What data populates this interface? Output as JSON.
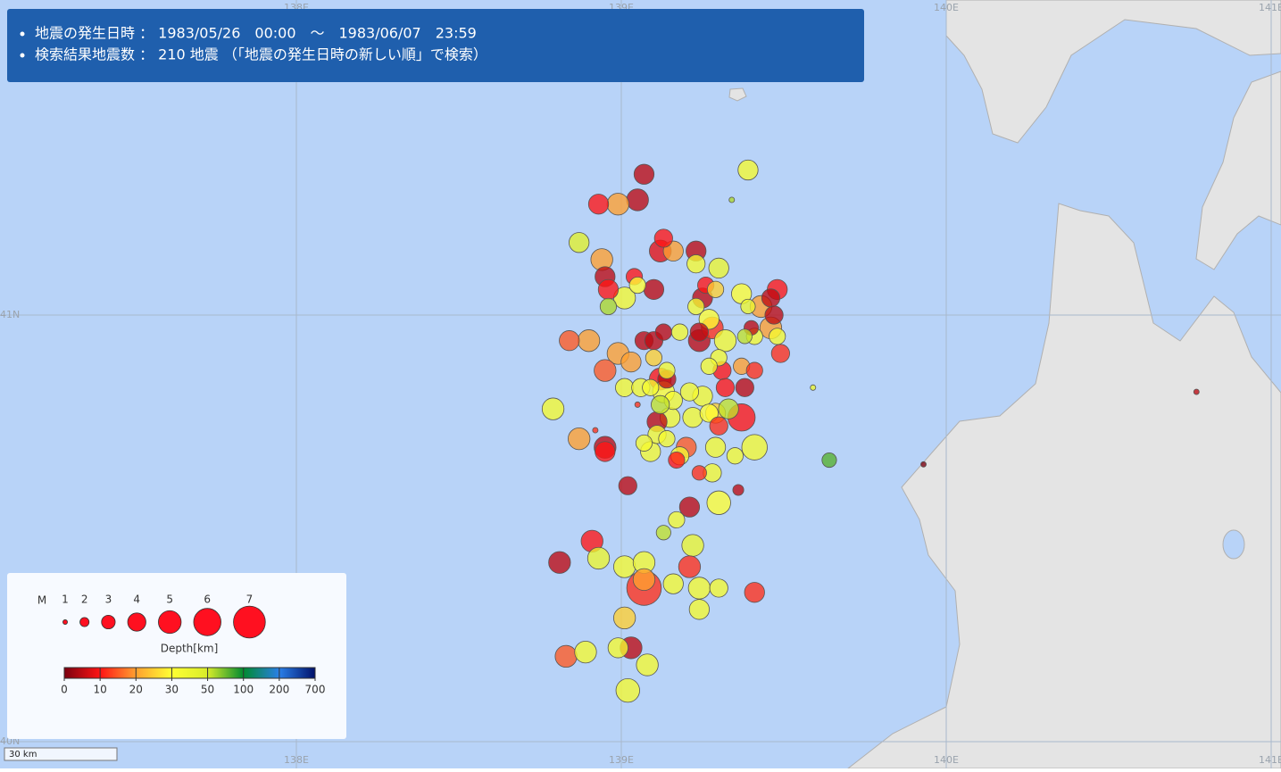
{
  "header": {
    "lines": [
      "地震の発生日時 ： 1983/05/26　00:00　～　1983/06/07　23:59",
      "検索結果地震数 ： 210 地震 （「地震の発生日時の新しい順」で検索）"
    ]
  },
  "map": {
    "lon_lines": [
      {
        "value": 138,
        "label": "138E"
      },
      {
        "value": 139,
        "label": "139E"
      },
      {
        "value": 140,
        "label": "140E"
      },
      {
        "value": 141,
        "label": "141E"
      }
    ],
    "lat_lines": [
      {
        "value": 41,
        "label": "41N"
      },
      {
        "value": 40,
        "label": "40N"
      }
    ],
    "scale_label": "30 km",
    "quakes": [
      [
        139.07,
        41.33,
        4.4,
        5
      ],
      [
        139.05,
        41.27,
        4.8,
        5
      ],
      [
        138.93,
        41.26,
        4.4,
        10
      ],
      [
        138.99,
        41.26,
        4.8,
        20
      ],
      [
        139.39,
        41.34,
        4.4,
        35
      ],
      [
        139.34,
        41.27,
        1.2,
        60
      ],
      [
        138.87,
        41.17,
        4.4,
        45
      ],
      [
        139.13,
        41.18,
        4.0,
        10
      ],
      [
        139.12,
        41.15,
        4.8,
        8
      ],
      [
        139.16,
        41.15,
        4.4,
        20
      ],
      [
        139.23,
        41.15,
        4.4,
        5
      ],
      [
        139.23,
        41.12,
        4.0,
        35
      ],
      [
        138.94,
        41.13,
        4.8,
        20
      ],
      [
        139.3,
        41.11,
        4.4,
        40
      ],
      [
        138.95,
        41.09,
        4.4,
        5
      ],
      [
        139.04,
        41.09,
        3.6,
        10
      ],
      [
        138.96,
        41.06,
        4.4,
        10
      ],
      [
        139.05,
        41.07,
        3.6,
        30
      ],
      [
        139.1,
        41.06,
        4.4,
        5
      ],
      [
        139.01,
        41.04,
        4.8,
        35
      ],
      [
        138.96,
        41.02,
        3.6,
        60
      ],
      [
        139.26,
        41.07,
        3.6,
        10
      ],
      [
        139.29,
        41.06,
        3.6,
        25
      ],
      [
        139.37,
        41.05,
        4.4,
        30
      ],
      [
        139.48,
        41.06,
        4.4,
        10
      ],
      [
        139.25,
        41.04,
        4.4,
        5
      ],
      [
        139.46,
        41.04,
        4.0,
        5
      ],
      [
        139.39,
        41.02,
        3.2,
        40
      ],
      [
        139.43,
        41.02,
        4.8,
        20
      ],
      [
        139.47,
        41.0,
        4.0,
        5
      ],
      [
        139.23,
        41.02,
        3.6,
        35
      ],
      [
        139.27,
        40.99,
        4.4,
        30
      ],
      [
        139.4,
        40.97,
        3.2,
        5
      ],
      [
        139.46,
        40.97,
        4.8,
        20
      ],
      [
        139.48,
        40.95,
        3.6,
        35
      ],
      [
        139.41,
        40.95,
        3.6,
        35
      ],
      [
        138.84,
        40.94,
        4.4,
        15
      ],
      [
        138.9,
        40.94,
        4.8,
        20
      ],
      [
        139.07,
        40.94,
        4.0,
        5
      ],
      [
        139.1,
        40.94,
        4.0,
        5
      ],
      [
        139.13,
        40.96,
        3.6,
        5
      ],
      [
        139.18,
        40.96,
        3.6,
        35
      ],
      [
        139.24,
        40.94,
        4.8,
        5
      ],
      [
        139.28,
        40.97,
        4.8,
        12
      ],
      [
        139.24,
        40.96,
        4.0,
        5
      ],
      [
        139.32,
        40.94,
        4.8,
        35
      ],
      [
        139.38,
        40.95,
        3.2,
        55
      ],
      [
        139.49,
        40.91,
        4.0,
        12
      ],
      [
        138.99,
        40.91,
        4.8,
        20
      ],
      [
        139.03,
        40.89,
        4.4,
        20
      ],
      [
        139.1,
        40.9,
        3.6,
        25
      ],
      [
        139.3,
        40.9,
        3.6,
        35
      ],
      [
        139.27,
        40.88,
        3.6,
        35
      ],
      [
        139.37,
        40.88,
        3.6,
        20
      ],
      [
        139.31,
        40.87,
        4.0,
        10
      ],
      [
        139.41,
        40.87,
        3.6,
        12
      ],
      [
        138.95,
        40.87,
        4.8,
        15
      ],
      [
        139.14,
        40.87,
        3.6,
        35
      ],
      [
        139.12,
        40.85,
        4.8,
        10
      ],
      [
        139.14,
        40.85,
        4.0,
        5
      ],
      [
        139.01,
        40.83,
        4.0,
        35
      ],
      [
        139.06,
        40.83,
        4.0,
        35
      ],
      [
        139.09,
        40.83,
        3.6,
        35
      ],
      [
        139.13,
        40.82,
        4.8,
        30
      ],
      [
        139.32,
        40.83,
        4.0,
        10
      ],
      [
        139.38,
        40.83,
        4.0,
        5
      ],
      [
        139.21,
        40.82,
        4.0,
        35
      ],
      [
        139.25,
        40.81,
        4.4,
        35
      ],
      [
        139.16,
        40.8,
        4.0,
        35
      ],
      [
        138.79,
        40.78,
        4.8,
        35
      ],
      [
        139.12,
        40.79,
        4.0,
        55
      ],
      [
        139.15,
        40.76,
        4.4,
        35
      ],
      [
        139.22,
        40.76,
        4.4,
        35
      ],
      [
        139.27,
        40.77,
        4.0,
        30
      ],
      [
        139.29,
        40.77,
        4.4,
        25
      ],
      [
        139.33,
        40.78,
        4.4,
        55
      ],
      [
        139.37,
        40.76,
        6.0,
        10
      ],
      [
        139.11,
        40.75,
        4.4,
        5
      ],
      [
        139.3,
        40.74,
        4.0,
        12
      ],
      [
        139.59,
        40.83,
        1.2,
        40
      ],
      [
        139.05,
        40.79,
        1.2,
        12
      ],
      [
        138.92,
        40.73,
        1.2,
        12
      ],
      [
        138.87,
        40.71,
        4.8,
        20
      ],
      [
        138.95,
        40.69,
        4.8,
        5
      ],
      [
        138.95,
        40.68,
        4.4,
        10
      ],
      [
        139.07,
        40.7,
        3.6,
        35
      ],
      [
        139.11,
        40.72,
        4.0,
        35
      ],
      [
        139.14,
        40.71,
        3.6,
        35
      ],
      [
        139.09,
        40.68,
        4.4,
        35
      ],
      [
        139.18,
        40.67,
        4.0,
        35
      ],
      [
        139.2,
        40.69,
        4.4,
        15
      ],
      [
        139.17,
        40.66,
        3.6,
        10
      ],
      [
        139.29,
        40.69,
        4.4,
        35
      ],
      [
        139.41,
        40.69,
        5.6,
        35
      ],
      [
        139.35,
        40.67,
        3.6,
        35
      ],
      [
        139.64,
        40.66,
        3.2,
        80
      ],
      [
        139.02,
        40.6,
        4.0,
        5
      ],
      [
        139.24,
        40.63,
        3.2,
        12
      ],
      [
        139.28,
        40.63,
        4.0,
        35
      ],
      [
        139.36,
        40.59,
        2.4,
        5
      ],
      [
        139.21,
        40.55,
        4.4,
        5
      ],
      [
        139.3,
        40.56,
        5.2,
        30
      ],
      [
        139.17,
        40.52,
        3.6,
        35
      ],
      [
        139.13,
        40.49,
        3.2,
        55
      ],
      [
        139.22,
        40.46,
        4.8,
        40
      ],
      [
        138.91,
        40.47,
        4.8,
        10
      ],
      [
        138.93,
        40.43,
        4.8,
        40
      ],
      [
        138.81,
        40.42,
        4.8,
        5
      ],
      [
        139.01,
        40.41,
        4.8,
        35
      ],
      [
        139.07,
        40.42,
        4.8,
        35
      ],
      [
        139.07,
        40.38,
        4.8,
        20
      ],
      [
        139.07,
        40.36,
        7.6,
        12
      ],
      [
        139.21,
        40.41,
        4.8,
        12
      ],
      [
        139.16,
        40.37,
        4.4,
        35
      ],
      [
        139.24,
        40.36,
        4.8,
        35
      ],
      [
        139.3,
        40.36,
        4.0,
        35
      ],
      [
        139.41,
        40.35,
        4.4,
        12
      ],
      [
        139.24,
        40.31,
        4.4,
        35
      ],
      [
        139.01,
        40.29,
        4.8,
        25
      ],
      [
        138.83,
        40.2,
        4.8,
        15
      ],
      [
        138.89,
        40.21,
        4.8,
        35
      ],
      [
        138.99,
        40.22,
        4.4,
        35
      ],
      [
        139.03,
        40.22,
        4.8,
        5
      ],
      [
        139.08,
        40.18,
        4.8,
        35
      ],
      [
        139.02,
        40.12,
        5.2,
        35
      ],
      [
        139.93,
        40.65,
        1.2,
        0
      ],
      [
        140.77,
        40.82,
        1.2,
        5
      ]
    ]
  },
  "legend": {
    "magnitude_label": "M",
    "magnitudes": [
      1,
      2,
      3,
      4,
      5,
      6,
      7
    ],
    "depth_title": "Depth[km]",
    "depth_ticks": [
      0,
      10,
      20,
      30,
      50,
      100,
      200,
      700
    ],
    "depth_colors": [
      "#7a0010",
      "#ff1414",
      "#ffa030",
      "#ffff33",
      "#d8ec2a",
      "#008a30",
      "#2a7fe8",
      "#00106a"
    ],
    "magnitude_color": "#ff1020"
  }
}
